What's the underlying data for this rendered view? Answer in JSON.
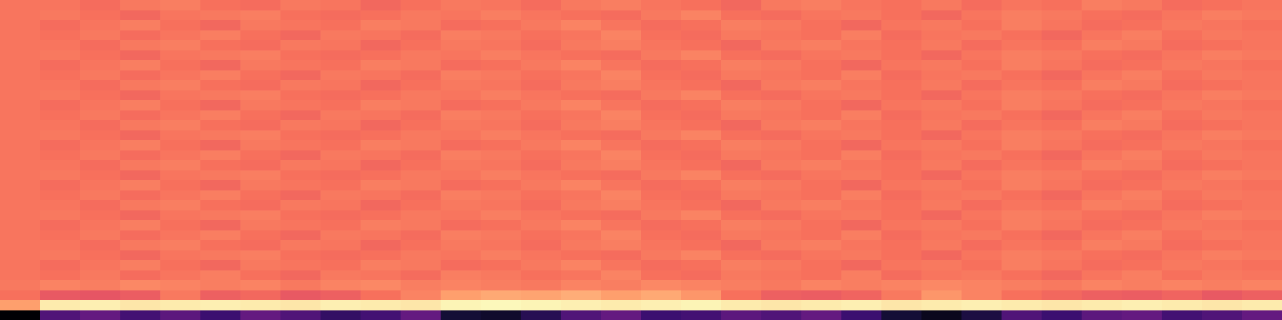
{
  "chart_data": {
    "type": "heatmap",
    "tick_labels": false,
    "zlim": [
      0,
      1
    ],
    "z": [
      [
        0.0,
        0.25,
        0.3,
        0.22,
        0.28,
        0.2,
        0.3,
        0.25,
        0.18,
        0.22,
        0.3,
        0.1,
        0.08,
        0.15,
        0.25,
        0.3,
        0.2,
        0.22,
        0.28,
        0.25,
        0.3,
        0.2,
        0.1,
        0.05,
        0.12,
        0.25,
        0.2,
        0.28,
        0.3,
        0.22,
        0.25,
        0.3
      ],
      [
        0.8,
        0.96,
        0.97,
        0.95,
        0.96,
        0.97,
        0.96,
        0.95,
        0.97,
        0.96,
        0.95,
        0.98,
        0.99,
        0.98,
        0.97,
        0.96,
        0.97,
        0.98,
        0.96,
        0.95,
        0.96,
        0.97,
        0.95,
        0.96,
        0.97,
        0.96,
        0.95,
        0.96,
        0.97,
        0.96,
        0.95,
        0.96
      ],
      [
        0.7,
        0.64,
        0.63,
        0.65,
        0.72,
        0.66,
        0.68,
        0.64,
        0.66,
        0.7,
        0.74,
        0.8,
        0.82,
        0.81,
        0.83,
        0.8,
        0.82,
        0.78,
        0.7,
        0.66,
        0.65,
        0.67,
        0.72,
        0.78,
        0.74,
        0.7,
        0.68,
        0.66,
        0.65,
        0.67,
        0.64,
        0.66
      ],
      [
        0.72,
        0.74,
        0.73,
        0.75,
        0.74,
        0.73,
        0.74,
        0.72,
        0.74,
        0.75,
        0.73,
        0.74,
        0.73,
        0.72,
        0.74,
        0.73,
        0.75,
        0.74,
        0.73,
        0.72,
        0.74,
        0.73,
        0.74,
        0.75,
        0.74,
        0.73,
        0.72,
        0.74,
        0.73,
        0.74,
        0.73,
        0.74
      ],
      [
        0.71,
        0.7,
        0.72,
        0.69,
        0.71,
        0.73,
        0.7,
        0.68,
        0.72,
        0.71,
        0.69,
        0.73,
        0.72,
        0.7,
        0.71,
        0.74,
        0.7,
        0.69,
        0.72,
        0.71,
        0.7,
        0.73,
        0.69,
        0.71,
        0.72,
        0.7,
        0.68,
        0.71,
        0.73,
        0.7,
        0.72,
        0.71
      ],
      [
        0.71,
        0.69,
        0.71,
        0.73,
        0.7,
        0.68,
        0.72,
        0.71,
        0.7,
        0.73,
        0.72,
        0.69,
        0.7,
        0.72,
        0.74,
        0.71,
        0.69,
        0.7,
        0.73,
        0.72,
        0.7,
        0.68,
        0.71,
        0.72,
        0.7,
        0.73,
        0.71,
        0.69,
        0.7,
        0.72,
        0.71,
        0.7
      ],
      [
        0.71,
        0.72,
        0.7,
        0.68,
        0.71,
        0.72,
        0.73,
        0.7,
        0.69,
        0.7,
        0.72,
        0.71,
        0.73,
        0.71,
        0.7,
        0.69,
        0.72,
        0.74,
        0.7,
        0.69,
        0.71,
        0.72,
        0.7,
        0.68,
        0.71,
        0.73,
        0.72,
        0.7,
        0.69,
        0.71,
        0.73,
        0.72
      ],
      [
        0.71,
        0.71,
        0.69,
        0.72,
        0.73,
        0.7,
        0.69,
        0.72,
        0.71,
        0.68,
        0.7,
        0.72,
        0.71,
        0.69,
        0.72,
        0.73,
        0.71,
        0.7,
        0.68,
        0.72,
        0.73,
        0.71,
        0.7,
        0.72,
        0.69,
        0.71,
        0.7,
        0.73,
        0.72,
        0.69,
        0.7,
        0.71
      ],
      [
        0.71,
        0.7,
        0.72,
        0.69,
        0.71,
        0.73,
        0.7,
        0.68,
        0.72,
        0.71,
        0.69,
        0.73,
        0.72,
        0.7,
        0.71,
        0.74,
        0.7,
        0.69,
        0.72,
        0.71,
        0.7,
        0.73,
        0.69,
        0.71,
        0.72,
        0.7,
        0.68,
        0.71,
        0.73,
        0.7,
        0.72,
        0.71
      ],
      [
        0.71,
        0.69,
        0.71,
        0.73,
        0.7,
        0.68,
        0.72,
        0.71,
        0.7,
        0.73,
        0.72,
        0.69,
        0.7,
        0.72,
        0.74,
        0.71,
        0.69,
        0.7,
        0.73,
        0.72,
        0.7,
        0.68,
        0.71,
        0.72,
        0.7,
        0.73,
        0.71,
        0.69,
        0.7,
        0.72,
        0.71,
        0.7
      ],
      [
        0.71,
        0.72,
        0.7,
        0.68,
        0.71,
        0.72,
        0.73,
        0.7,
        0.69,
        0.7,
        0.72,
        0.71,
        0.73,
        0.71,
        0.7,
        0.69,
        0.72,
        0.74,
        0.7,
        0.69,
        0.71,
        0.72,
        0.7,
        0.68,
        0.71,
        0.73,
        0.72,
        0.7,
        0.69,
        0.71,
        0.73,
        0.72
      ],
      [
        0.71,
        0.71,
        0.69,
        0.72,
        0.73,
        0.7,
        0.69,
        0.72,
        0.71,
        0.68,
        0.7,
        0.72,
        0.71,
        0.69,
        0.72,
        0.73,
        0.71,
        0.7,
        0.68,
        0.72,
        0.73,
        0.71,
        0.7,
        0.72,
        0.69,
        0.71,
        0.7,
        0.73,
        0.72,
        0.69,
        0.7,
        0.71
      ],
      [
        0.71,
        0.7,
        0.72,
        0.69,
        0.71,
        0.73,
        0.7,
        0.68,
        0.72,
        0.71,
        0.69,
        0.73,
        0.72,
        0.7,
        0.71,
        0.74,
        0.7,
        0.69,
        0.72,
        0.71,
        0.7,
        0.73,
        0.69,
        0.71,
        0.72,
        0.7,
        0.68,
        0.71,
        0.73,
        0.7,
        0.72,
        0.71
      ],
      [
        0.71,
        0.69,
        0.71,
        0.73,
        0.7,
        0.68,
        0.72,
        0.71,
        0.7,
        0.73,
        0.72,
        0.69,
        0.7,
        0.72,
        0.74,
        0.71,
        0.69,
        0.7,
        0.73,
        0.72,
        0.7,
        0.68,
        0.71,
        0.72,
        0.7,
        0.73,
        0.71,
        0.69,
        0.7,
        0.72,
        0.71,
        0.7
      ],
      [
        0.71,
        0.72,
        0.7,
        0.68,
        0.71,
        0.72,
        0.73,
        0.7,
        0.69,
        0.7,
        0.72,
        0.71,
        0.73,
        0.71,
        0.7,
        0.69,
        0.72,
        0.74,
        0.7,
        0.69,
        0.71,
        0.72,
        0.7,
        0.68,
        0.71,
        0.73,
        0.72,
        0.7,
        0.69,
        0.71,
        0.73,
        0.72
      ],
      [
        0.71,
        0.71,
        0.69,
        0.72,
        0.73,
        0.7,
        0.69,
        0.72,
        0.71,
        0.68,
        0.7,
        0.72,
        0.71,
        0.69,
        0.72,
        0.73,
        0.71,
        0.7,
        0.68,
        0.72,
        0.73,
        0.71,
        0.7,
        0.72,
        0.69,
        0.71,
        0.7,
        0.73,
        0.72,
        0.69,
        0.7,
        0.71
      ],
      [
        0.71,
        0.7,
        0.72,
        0.69,
        0.71,
        0.73,
        0.7,
        0.68,
        0.72,
        0.71,
        0.69,
        0.73,
        0.72,
        0.7,
        0.71,
        0.74,
        0.7,
        0.69,
        0.72,
        0.71,
        0.7,
        0.73,
        0.69,
        0.71,
        0.72,
        0.7,
        0.68,
        0.71,
        0.73,
        0.7,
        0.72,
        0.71
      ],
      [
        0.71,
        0.69,
        0.71,
        0.73,
        0.7,
        0.68,
        0.72,
        0.71,
        0.7,
        0.73,
        0.72,
        0.69,
        0.7,
        0.72,
        0.74,
        0.71,
        0.69,
        0.7,
        0.73,
        0.72,
        0.7,
        0.68,
        0.71,
        0.72,
        0.7,
        0.73,
        0.71,
        0.69,
        0.7,
        0.72,
        0.71,
        0.7
      ],
      [
        0.71,
        0.72,
        0.7,
        0.68,
        0.71,
        0.72,
        0.73,
        0.7,
        0.69,
        0.7,
        0.72,
        0.71,
        0.73,
        0.71,
        0.7,
        0.69,
        0.72,
        0.74,
        0.7,
        0.69,
        0.71,
        0.72,
        0.7,
        0.68,
        0.71,
        0.73,
        0.72,
        0.7,
        0.69,
        0.71,
        0.73,
        0.72
      ],
      [
        0.71,
        0.71,
        0.69,
        0.72,
        0.73,
        0.7,
        0.69,
        0.72,
        0.71,
        0.68,
        0.7,
        0.72,
        0.71,
        0.69,
        0.72,
        0.73,
        0.71,
        0.7,
        0.68,
        0.72,
        0.73,
        0.71,
        0.7,
        0.72,
        0.69,
        0.71,
        0.7,
        0.73,
        0.72,
        0.69,
        0.7,
        0.71
      ],
      [
        0.71,
        0.7,
        0.72,
        0.69,
        0.71,
        0.73,
        0.7,
        0.68,
        0.72,
        0.71,
        0.69,
        0.73,
        0.72,
        0.7,
        0.71,
        0.74,
        0.7,
        0.69,
        0.72,
        0.71,
        0.7,
        0.73,
        0.69,
        0.71,
        0.72,
        0.7,
        0.68,
        0.71,
        0.73,
        0.7,
        0.72,
        0.71
      ],
      [
        0.71,
        0.69,
        0.71,
        0.73,
        0.7,
        0.68,
        0.72,
        0.71,
        0.7,
        0.73,
        0.72,
        0.69,
        0.7,
        0.72,
        0.74,
        0.71,
        0.69,
        0.7,
        0.73,
        0.72,
        0.7,
        0.68,
        0.71,
        0.72,
        0.7,
        0.73,
        0.71,
        0.69,
        0.7,
        0.72,
        0.71,
        0.7
      ],
      [
        0.71,
        0.72,
        0.7,
        0.68,
        0.71,
        0.72,
        0.73,
        0.7,
        0.69,
        0.7,
        0.72,
        0.71,
        0.73,
        0.71,
        0.7,
        0.69,
        0.72,
        0.74,
        0.7,
        0.69,
        0.71,
        0.72,
        0.7,
        0.68,
        0.71,
        0.73,
        0.72,
        0.7,
        0.69,
        0.71,
        0.73,
        0.72
      ],
      [
        0.71,
        0.71,
        0.69,
        0.72,
        0.73,
        0.7,
        0.69,
        0.72,
        0.71,
        0.68,
        0.7,
        0.72,
        0.71,
        0.69,
        0.72,
        0.73,
        0.71,
        0.7,
        0.68,
        0.72,
        0.73,
        0.71,
        0.7,
        0.72,
        0.69,
        0.71,
        0.7,
        0.73,
        0.72,
        0.69,
        0.7,
        0.71
      ],
      [
        0.71,
        0.7,
        0.72,
        0.69,
        0.71,
        0.73,
        0.7,
        0.68,
        0.72,
        0.71,
        0.69,
        0.73,
        0.72,
        0.7,
        0.71,
        0.74,
        0.7,
        0.69,
        0.72,
        0.71,
        0.7,
        0.73,
        0.69,
        0.71,
        0.72,
        0.7,
        0.68,
        0.71,
        0.73,
        0.7,
        0.72,
        0.71
      ],
      [
        0.71,
        0.69,
        0.71,
        0.73,
        0.7,
        0.68,
        0.72,
        0.71,
        0.7,
        0.73,
        0.72,
        0.69,
        0.7,
        0.72,
        0.74,
        0.71,
        0.69,
        0.7,
        0.73,
        0.72,
        0.7,
        0.68,
        0.71,
        0.72,
        0.7,
        0.73,
        0.71,
        0.69,
        0.7,
        0.72,
        0.71,
        0.7
      ],
      [
        0.71,
        0.72,
        0.7,
        0.68,
        0.71,
        0.72,
        0.73,
        0.7,
        0.69,
        0.7,
        0.72,
        0.71,
        0.73,
        0.71,
        0.7,
        0.69,
        0.72,
        0.74,
        0.7,
        0.69,
        0.71,
        0.72,
        0.7,
        0.68,
        0.71,
        0.73,
        0.72,
        0.7,
        0.69,
        0.71,
        0.73,
        0.72
      ],
      [
        0.71,
        0.71,
        0.69,
        0.72,
        0.73,
        0.7,
        0.69,
        0.72,
        0.71,
        0.68,
        0.7,
        0.72,
        0.71,
        0.69,
        0.72,
        0.73,
        0.71,
        0.7,
        0.68,
        0.72,
        0.73,
        0.71,
        0.7,
        0.72,
        0.69,
        0.71,
        0.7,
        0.73,
        0.72,
        0.69,
        0.7,
        0.71
      ],
      [
        0.71,
        0.7,
        0.72,
        0.69,
        0.71,
        0.73,
        0.7,
        0.68,
        0.72,
        0.71,
        0.69,
        0.73,
        0.72,
        0.7,
        0.71,
        0.74,
        0.7,
        0.69,
        0.72,
        0.71,
        0.7,
        0.73,
        0.69,
        0.71,
        0.72,
        0.7,
        0.68,
        0.71,
        0.73,
        0.7,
        0.72,
        0.71
      ],
      [
        0.71,
        0.69,
        0.71,
        0.73,
        0.7,
        0.68,
        0.72,
        0.71,
        0.7,
        0.73,
        0.72,
        0.69,
        0.7,
        0.72,
        0.74,
        0.71,
        0.69,
        0.7,
        0.73,
        0.72,
        0.7,
        0.68,
        0.71,
        0.72,
        0.7,
        0.73,
        0.71,
        0.69,
        0.7,
        0.72,
        0.71,
        0.7
      ],
      [
        0.71,
        0.72,
        0.7,
        0.68,
        0.71,
        0.72,
        0.73,
        0.7,
        0.69,
        0.7,
        0.72,
        0.71,
        0.73,
        0.71,
        0.7,
        0.69,
        0.72,
        0.74,
        0.7,
        0.69,
        0.71,
        0.72,
        0.7,
        0.68,
        0.71,
        0.73,
        0.72,
        0.7,
        0.69,
        0.71,
        0.73,
        0.72
      ],
      [
        0.71,
        0.71,
        0.69,
        0.72,
        0.73,
        0.7,
        0.69,
        0.72,
        0.71,
        0.68,
        0.7,
        0.72,
        0.71,
        0.69,
        0.72,
        0.73,
        0.71,
        0.7,
        0.68,
        0.72,
        0.73,
        0.71,
        0.7,
        0.72,
        0.69,
        0.71,
        0.7,
        0.73,
        0.72,
        0.69,
        0.7,
        0.71
      ]
    ]
  }
}
